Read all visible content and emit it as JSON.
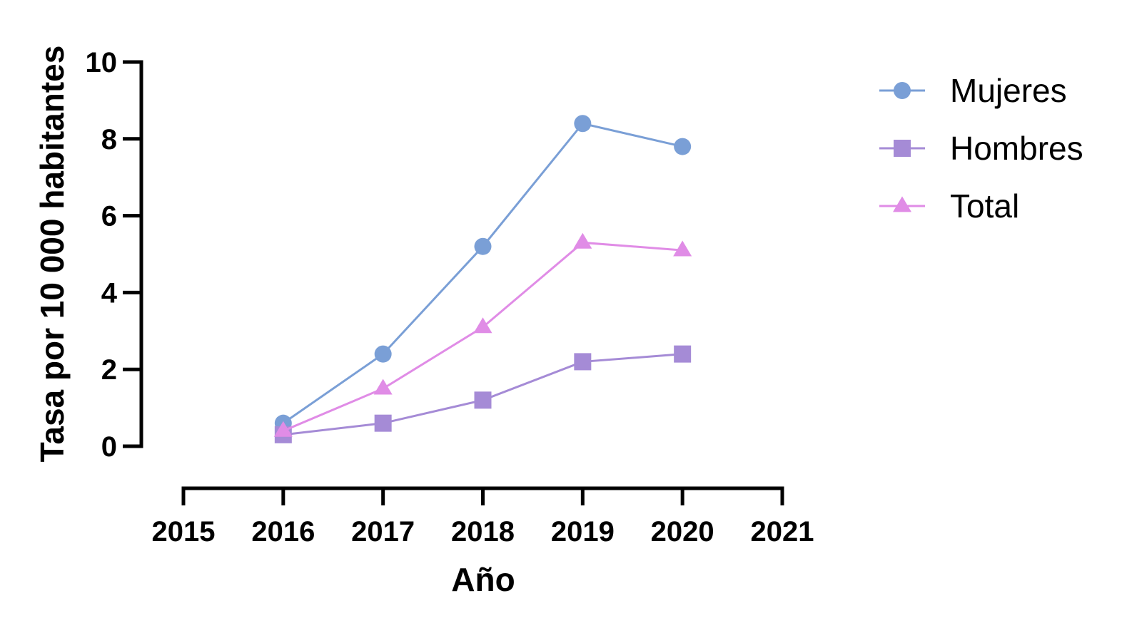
{
  "chart_data": {
    "type": "line",
    "xlabel": "Año",
    "ylabel": "Tasa por 10 000 habitantes",
    "xlim": [
      2015,
      2021
    ],
    "ylim": [
      0,
      10
    ],
    "xticks": [
      "2015",
      "2016",
      "2017",
      "2018",
      "2019",
      "2020",
      "2021"
    ],
    "yticks": [
      "0",
      "2",
      "4",
      "6",
      "8",
      "10"
    ],
    "x": [
      2016,
      2017,
      2018,
      2019,
      2020
    ],
    "series": [
      {
        "name": "Mujeres",
        "values": [
          0.6,
          2.4,
          5.2,
          8.4,
          7.8
        ],
        "color": "#7a9fd6",
        "marker": "circle"
      },
      {
        "name": "Hombres",
        "values": [
          0.3,
          0.6,
          1.2,
          2.2,
          2.4
        ],
        "color": "#a58bd6",
        "marker": "square"
      },
      {
        "name": "Total",
        "values": [
          0.4,
          1.5,
          3.1,
          5.3,
          5.1
        ],
        "color": "#e08ce6",
        "marker": "triangle"
      }
    ],
    "grid": false,
    "legend_position": "top-right"
  }
}
